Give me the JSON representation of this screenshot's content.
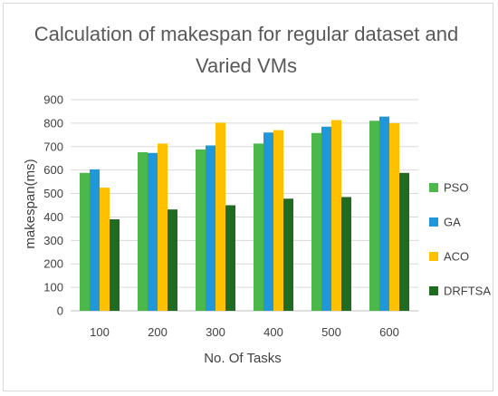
{
  "chart_data": {
    "type": "bar",
    "title_line1": "Calculation of makespan for regular dataset and",
    "title_line2": "Varied VMs",
    "xlabel": "No. Of Tasks",
    "ylabel": "makespan(ms)",
    "categories": [
      "100",
      "200",
      "300",
      "400",
      "500",
      "600"
    ],
    "ylim": [
      0,
      900
    ],
    "yticks": [
      0,
      100,
      200,
      300,
      400,
      500,
      600,
      700,
      800,
      900
    ],
    "grid": true,
    "legend_position": "right",
    "series": [
      {
        "name": "PSO",
        "color": "#4cb84c",
        "values": [
          588,
          676,
          688,
          713,
          758,
          810
        ]
      },
      {
        "name": "GA",
        "color": "#1f97d8",
        "values": [
          603,
          673,
          705,
          760,
          785,
          828
        ]
      },
      {
        "name": "ACO",
        "color": "#ffc000",
        "values": [
          525,
          713,
          802,
          770,
          813,
          800
        ]
      },
      {
        "name": "DRFTSA",
        "color": "#1f6b20",
        "values": [
          390,
          432,
          450,
          478,
          485,
          588
        ]
      }
    ]
  }
}
